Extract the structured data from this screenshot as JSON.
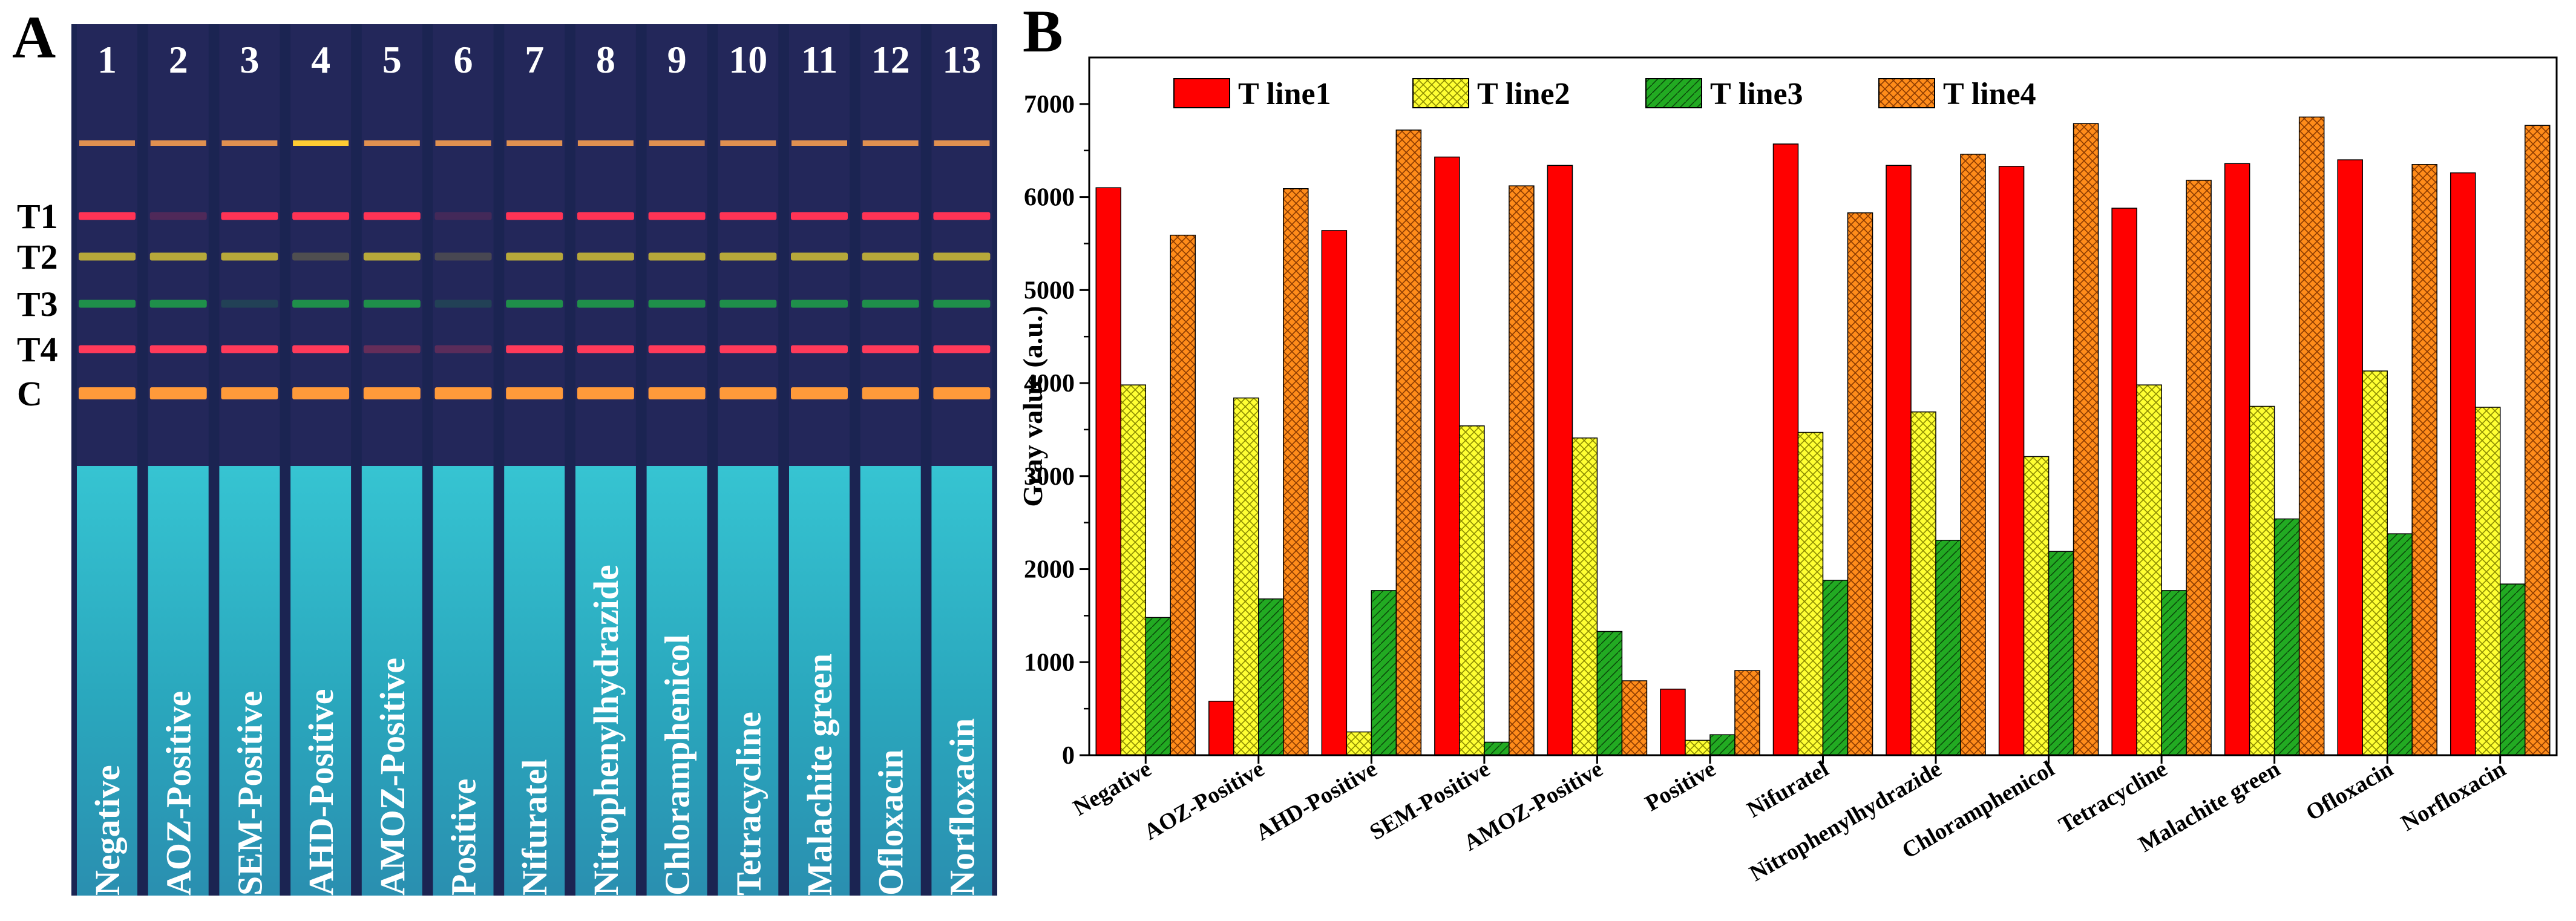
{
  "panelA": {
    "letter": "A",
    "lane_numbers": [
      "1",
      "2",
      "3",
      "4",
      "5",
      "6",
      "7",
      "8",
      "9",
      "10",
      "11",
      "12",
      "13"
    ],
    "line_labels": [
      "T1",
      "T2",
      "T3",
      "T4",
      "C"
    ],
    "sample_labels": [
      "Negative",
      "AOZ-Positive",
      "SEM-Positive",
      "AHD-Positive",
      "AMOZ-Positive",
      "Positive",
      "Nifuratel",
      "Nitrophenylhydrazide",
      "Chloramphenicol",
      "Tetracycline",
      "Malachite green",
      "Ofloxacin",
      "Norfloxacin"
    ],
    "colors": {
      "background": "#1a2550",
      "strip": "#23275a",
      "pad": "#2fb6c8",
      "t1": "#ff3355",
      "t2": "#b7a83a",
      "t3": "#1f8f4a",
      "t4": "#ff3a5a",
      "c": "#ff9a3a"
    }
  },
  "panelB": {
    "letter": "B"
  },
  "chart_data": {
    "type": "bar",
    "title": "",
    "xlabel": "",
    "ylabel": "Gray value (a.u.)",
    "ylim": [
      0,
      7500
    ],
    "yticks": [
      0,
      1000,
      2000,
      3000,
      4000,
      5000,
      6000,
      7000
    ],
    "legend_position": "top-left",
    "categories": [
      "Negative",
      "AOZ-Positive",
      "AHD-Positive",
      "SEM-Positive",
      "AMOZ-Positive",
      "Positive",
      "Nifuratel",
      "Nitrophenylhydrazide",
      "Chloramphenicol",
      "Tetracycline",
      "Malachite green",
      "Ofloxacin",
      "Norfloxacin"
    ],
    "series": [
      {
        "name": "T line1",
        "color": "#ff0000",
        "pattern": "solid",
        "values": [
          6100,
          580,
          5640,
          6430,
          6340,
          710,
          6570,
          6340,
          6330,
          5880,
          6360,
          6400,
          6260
        ]
      },
      {
        "name": "T line2",
        "color": "#ffff33",
        "pattern": "cross",
        "values": [
          3980,
          3840,
          250,
          3540,
          3410,
          160,
          3470,
          3690,
          3210,
          3980,
          3750,
          4130,
          3740
        ]
      },
      {
        "name": "T line3",
        "color": "#22aa22",
        "pattern": "diag",
        "values": [
          1480,
          1680,
          1770,
          140,
          1330,
          220,
          1880,
          2310,
          2190,
          1770,
          2540,
          2380,
          1840
        ]
      },
      {
        "name": "T line4",
        "color": "#ff8c1a",
        "pattern": "cross",
        "values": [
          5590,
          6090,
          6720,
          6120,
          800,
          910,
          5830,
          6460,
          6790,
          6180,
          6860,
          6350,
          6770
        ]
      }
    ]
  }
}
